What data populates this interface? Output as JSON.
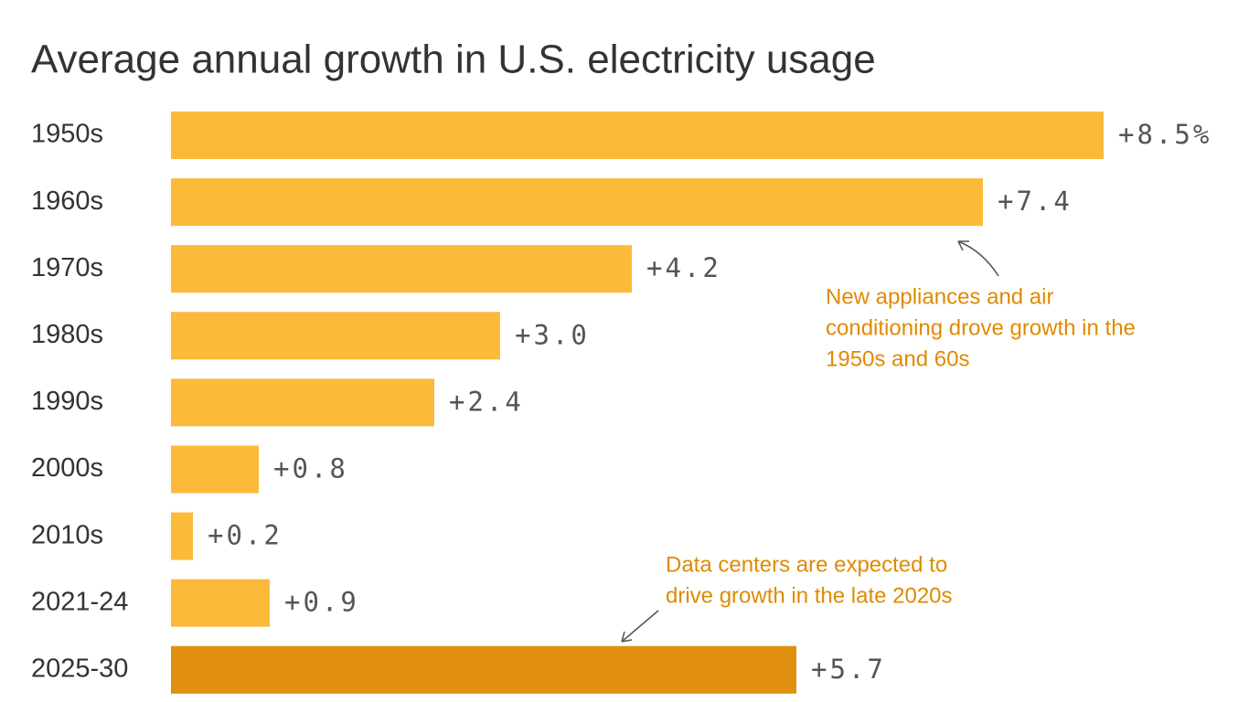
{
  "chart_data": {
    "type": "bar",
    "orientation": "horizontal",
    "title": "Average annual growth in U.S. electricity usage",
    "categories": [
      "1950s",
      "1960s",
      "1970s",
      "1980s",
      "1990s",
      "2000s",
      "2010s",
      "2021-24",
      "2025-30"
    ],
    "values": [
      8.5,
      7.4,
      4.2,
      3.0,
      2.4,
      0.8,
      0.2,
      0.9,
      5.7
    ],
    "value_labels": [
      "+8.5%",
      "+7.4",
      "+4.2",
      "+3.0",
      "+2.4",
      "+0.8",
      "+0.2",
      "+0.9",
      "+5.7"
    ],
    "colors": [
      "#fbba3a",
      "#fbba3a",
      "#fbba3a",
      "#fbba3a",
      "#fbba3a",
      "#fbba3a",
      "#fbba3a",
      "#fbba3a",
      "#e0900e"
    ],
    "annotations": [
      {
        "lines": [
          "New appliances and air",
          "conditioning drove growth in the",
          "1950s and 60s"
        ]
      },
      {
        "lines": [
          "Data centers are expected to",
          "drive growth in the late 2020s"
        ]
      }
    ]
  }
}
